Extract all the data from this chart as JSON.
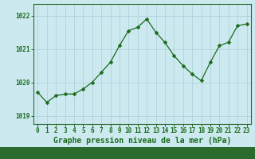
{
  "x": [
    0,
    1,
    2,
    3,
    4,
    5,
    6,
    7,
    8,
    9,
    10,
    11,
    12,
    13,
    14,
    15,
    16,
    17,
    18,
    19,
    20,
    21,
    22,
    23
  ],
  "y": [
    1019.7,
    1019.4,
    1019.6,
    1019.65,
    1019.65,
    1019.8,
    1020.0,
    1020.3,
    1020.6,
    1021.1,
    1021.55,
    1021.65,
    1021.9,
    1021.5,
    1021.2,
    1020.8,
    1020.5,
    1020.25,
    1020.05,
    1020.6,
    1021.1,
    1021.2,
    1021.7,
    1021.75
  ],
  "line_color": "#1a6b1a",
  "marker": "D",
  "marker_size": 2.5,
  "bg_color": "#cce9f0",
  "grid_color": "#aacdd8",
  "border_color": "#2d6a2d",
  "xlabel": "Graphe pression niveau de la mer (hPa)",
  "xlabel_fontsize": 7,
  "xlabel_color": "#1a6b1a",
  "yticks": [
    1019,
    1020,
    1021,
    1022
  ],
  "xticks": [
    0,
    1,
    2,
    3,
    4,
    5,
    6,
    7,
    8,
    9,
    10,
    11,
    12,
    13,
    14,
    15,
    16,
    17,
    18,
    19,
    20,
    21,
    22,
    23
  ],
  "ylim": [
    1018.75,
    1022.35
  ],
  "xlim": [
    -0.5,
    23.5
  ],
  "tick_fontsize": 5.5,
  "tick_color": "#1a6b1a",
  "bottom_bar_color": "#2d6a2d"
}
